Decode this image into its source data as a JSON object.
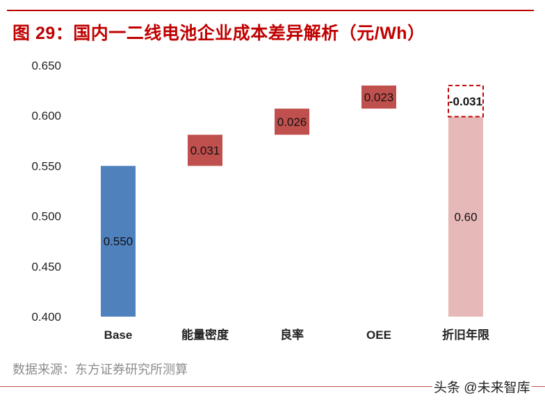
{
  "title": "图 29：国内一二线电池企业成本差异解析（元/Wh）",
  "source": "数据来源：东方证券研究所测算",
  "watermark": "头条 @未来智库",
  "chart_data": {
    "type": "waterfall",
    "title": "图 29：国内一二线电池企业成本差异解析（元/Wh）",
    "categories": [
      "Base",
      "能量密度",
      "良率",
      "OEE",
      "折旧年限"
    ],
    "values": [
      0.55,
      0.031,
      0.026,
      0.023,
      -0.031
    ],
    "labels": [
      "0.550",
      "0.031",
      "0.026",
      "0.023",
      "-0.031"
    ],
    "total": {
      "category": "折旧年限",
      "value": 0.6,
      "label": "0.60"
    },
    "ylim": [
      0.4,
      0.65
    ],
    "yticks": [
      "0.400",
      "0.450",
      "0.500",
      "0.550",
      "0.600",
      "0.650"
    ],
    "grid": false,
    "colors": {
      "base": "#4f81bd",
      "increase": "#c0504d",
      "total": "#e6b9b8",
      "decrease_outline": "#c00000"
    }
  }
}
